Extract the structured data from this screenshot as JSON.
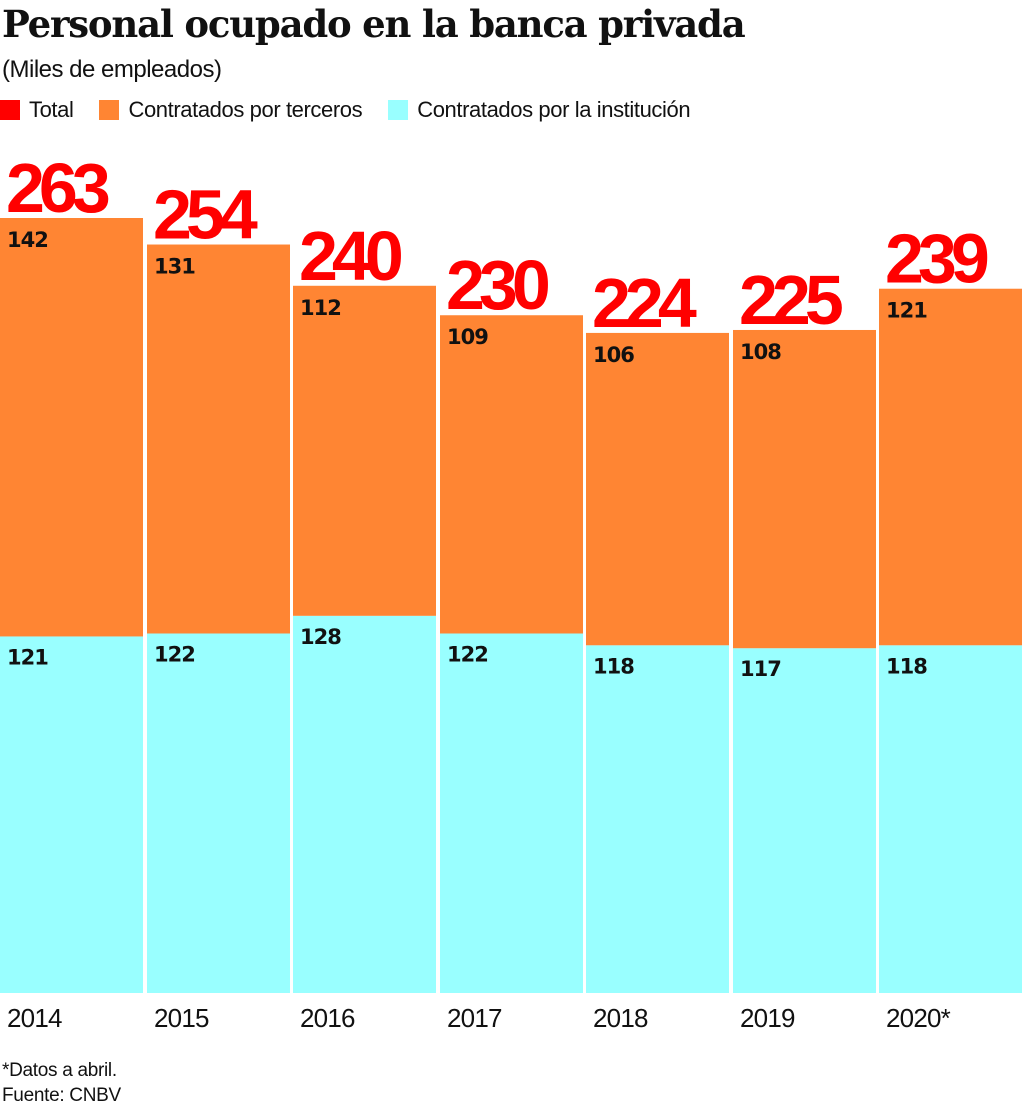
{
  "header": {
    "title": "Personal ocupado en la banca privada",
    "subtitle": "(Miles de empleados)"
  },
  "legend": [
    {
      "label": "Total",
      "color": "#ff0000"
    },
    {
      "label": "Contratados por terceros",
      "color": "#ff8533"
    },
    {
      "label": "Contratados por la institución",
      "color": "#99ffff"
    }
  ],
  "footnote": {
    "note": "*Datos a abril.",
    "source": "Fuente: CNBV"
  },
  "chart_data": {
    "type": "bar",
    "stacked": true,
    "title": "Personal ocupado en la banca privada",
    "subtitle": "(Miles de empleados)",
    "xlabel": "",
    "ylabel": "Miles de empleados",
    "ylim": [
      0,
      263
    ],
    "grid": false,
    "legend_position": "top-left",
    "categories": [
      "2014",
      "2015",
      "2016",
      "2017",
      "2018",
      "2019",
      "2020*"
    ],
    "totals": [
      263,
      254,
      240,
      230,
      224,
      225,
      239
    ],
    "series": [
      {
        "name": "Contratados por la institución",
        "color": "#99ffff",
        "values": [
          121,
          122,
          128,
          122,
          118,
          117,
          118
        ]
      },
      {
        "name": "Contratados por terceros",
        "color": "#ff8533",
        "values": [
          142,
          131,
          112,
          109,
          106,
          108,
          121
        ]
      }
    ],
    "total_color": "#ff0000"
  }
}
